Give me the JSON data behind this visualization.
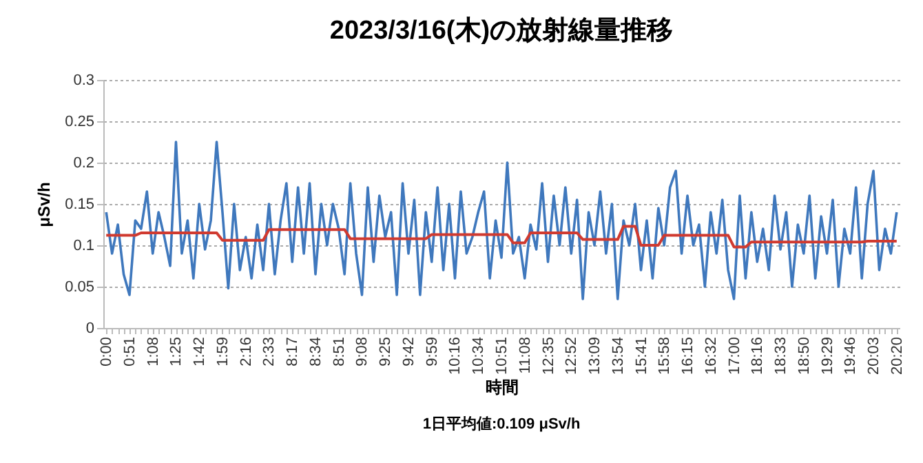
{
  "chart_data": {
    "type": "line",
    "title": "2023/3/16(木)の放射線量推移",
    "xlabel": "時間",
    "ylabel": "μSv/h",
    "annotations": [
      "1日平均値:0.109 μSv/h"
    ],
    "categories": [
      "0:00",
      null,
      null,
      null,
      "0:51",
      null,
      null,
      null,
      "1:08",
      null,
      null,
      null,
      "1:25",
      null,
      null,
      null,
      "1:42",
      null,
      null,
      null,
      "1:59",
      null,
      null,
      null,
      "2:16",
      null,
      null,
      null,
      "2:33",
      null,
      null,
      null,
      "8:17",
      null,
      null,
      null,
      "8:34",
      null,
      null,
      null,
      "8:51",
      null,
      null,
      null,
      "9:08",
      null,
      null,
      null,
      "9:25",
      null,
      null,
      null,
      "9:42",
      null,
      null,
      null,
      "9:59",
      null,
      null,
      null,
      "10:16",
      null,
      null,
      null,
      "10:34",
      null,
      null,
      null,
      "10:51",
      null,
      null,
      null,
      "11:08",
      null,
      null,
      null,
      "12:35",
      null,
      null,
      null,
      "12:52",
      null,
      null,
      null,
      "13:09",
      null,
      null,
      null,
      "13:54",
      null,
      null,
      null,
      "15:41",
      null,
      null,
      null,
      "15:58",
      null,
      null,
      null,
      "16:15",
      null,
      null,
      null,
      "16:32",
      null,
      null,
      null,
      "17:00",
      null,
      null,
      null,
      "18:16",
      null,
      null,
      null,
      "18:33",
      null,
      null,
      null,
      "18:50",
      null,
      null,
      null,
      "19:29",
      null,
      null,
      null,
      "19:46",
      null,
      null,
      null,
      "20:03",
      null,
      null,
      null,
      "20:20"
    ],
    "series": [
      {
        "color": "#3f78bd",
        "values": [
          0.14,
          0.09,
          0.125,
          0.065,
          0.04,
          0.13,
          0.12,
          0.165,
          0.09,
          0.14,
          0.11,
          0.075,
          0.225,
          0.09,
          0.13,
          0.06,
          0.15,
          0.095,
          0.13,
          0.225,
          0.14,
          0.048,
          0.15,
          0.07,
          0.11,
          0.06,
          0.125,
          0.07,
          0.15,
          0.065,
          0.13,
          0.175,
          0.08,
          0.17,
          0.09,
          0.175,
          0.065,
          0.15,
          0.1,
          0.15,
          0.12,
          0.065,
          0.175,
          0.09,
          0.04,
          0.17,
          0.08,
          0.16,
          0.11,
          0.14,
          0.04,
          0.175,
          0.09,
          0.155,
          0.04,
          0.14,
          0.08,
          0.17,
          0.07,
          0.15,
          0.06,
          0.165,
          0.09,
          0.11,
          0.14,
          0.165,
          0.06,
          0.13,
          0.085,
          0.2,
          0.09,
          0.11,
          0.06,
          0.125,
          0.095,
          0.175,
          0.08,
          0.16,
          0.1,
          0.17,
          0.09,
          0.155,
          0.035,
          0.14,
          0.1,
          0.165,
          0.09,
          0.15,
          0.035,
          0.13,
          0.1,
          0.15,
          0.07,
          0.13,
          0.06,
          0.145,
          0.1,
          0.17,
          0.19,
          0.09,
          0.16,
          0.1,
          0.125,
          0.05,
          0.14,
          0.09,
          0.155,
          0.07,
          0.035,
          0.16,
          0.06,
          0.14,
          0.08,
          0.12,
          0.07,
          0.16,
          0.095,
          0.14,
          0.05,
          0.125,
          0.09,
          0.16,
          0.06,
          0.135,
          0.09,
          0.155,
          0.05,
          0.12,
          0.09,
          0.17,
          0.06,
          0.15,
          0.19,
          0.07,
          0.12,
          0.09,
          0.14
        ]
      },
      {
        "color": "#d03a30",
        "values": [
          0.112,
          0.112,
          0.112,
          0.112,
          0.112,
          0.112,
          0.115,
          0.115,
          0.115,
          0.115,
          0.115,
          0.115,
          0.115,
          0.115,
          0.115,
          0.115,
          0.115,
          0.115,
          0.115,
          0.115,
          0.106,
          0.106,
          0.106,
          0.106,
          0.106,
          0.106,
          0.106,
          0.106,
          0.119,
          0.119,
          0.119,
          0.119,
          0.119,
          0.119,
          0.119,
          0.119,
          0.119,
          0.119,
          0.119,
          0.119,
          0.119,
          0.119,
          0.108,
          0.108,
          0.108,
          0.108,
          0.108,
          0.108,
          0.108,
          0.108,
          0.108,
          0.108,
          0.108,
          0.108,
          0.108,
          0.108,
          0.113,
          0.113,
          0.113,
          0.113,
          0.113,
          0.113,
          0.113,
          0.113,
          0.113,
          0.113,
          0.113,
          0.113,
          0.113,
          0.113,
          0.103,
          0.103,
          0.103,
          0.115,
          0.115,
          0.115,
          0.115,
          0.115,
          0.115,
          0.115,
          0.115,
          0.115,
          0.107,
          0.107,
          0.107,
          0.107,
          0.107,
          0.107,
          0.107,
          0.123,
          0.123,
          0.123,
          0.1,
          0.1,
          0.1,
          0.1,
          0.112,
          0.112,
          0.112,
          0.112,
          0.112,
          0.112,
          0.112,
          0.112,
          0.112,
          0.112,
          0.112,
          0.112,
          0.098,
          0.098,
          0.098,
          0.104,
          0.104,
          0.104,
          0.104,
          0.104,
          0.104,
          0.104,
          0.104,
          0.104,
          0.104,
          0.104,
          0.104,
          0.104,
          0.104,
          0.104,
          0.104,
          0.104,
          0.104,
          0.104,
          0.104,
          0.105,
          0.105,
          0.105,
          0.105,
          0.105,
          0.105
        ]
      }
    ],
    "ylim": [
      0,
      0.3
    ],
    "yticks": [
      0,
      0.05,
      0.1,
      0.15,
      0.2,
      0.25,
      0.3
    ],
    "grid": "y",
    "marker": "none",
    "line_style": "solid"
  }
}
